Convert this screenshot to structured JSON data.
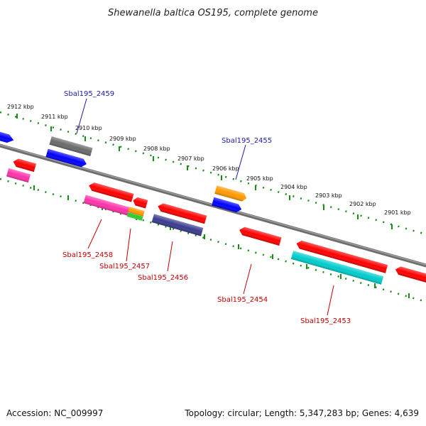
{
  "title": "Shewanella baltica OS195, complete genome",
  "footer": {
    "accession": "Accession: NC_009997",
    "topology": "Topology: circular; Length: 5,347,283 bp; Genes: 4,639"
  },
  "ticks": [
    "2912 kbp",
    "2911 kbp",
    "2910 kbp",
    "2909 kbp",
    "2908 kbp",
    "2907 kbp",
    "2906 kbp",
    "2905 kbp",
    "2904 kbp",
    "2903 kbp",
    "2902 kbp",
    "2901 kbp"
  ],
  "labels": {
    "sbal2459": "Sbal195_2459",
    "sbal2455": "Sbal195_2455",
    "sbal2458": "Sbal195_2458",
    "sbal2457": "Sbal195_2457",
    "sbal2456": "Sbal195_2456",
    "sbal2454": "Sbal195_2454",
    "sbal2453": "Sbal195_2453"
  },
  "colors": {
    "forward_label": "#1a1aa6",
    "reverse_label": "#c00000",
    "red": "#ff0000",
    "blue": "#0000ff",
    "gray": "#707070",
    "pink": "#ff33aa",
    "orange": "#ff9900",
    "green": "#33cc33",
    "slate": "#3b3b8f",
    "cyan": "#00cccc",
    "tick": "#1a8a1a"
  }
}
